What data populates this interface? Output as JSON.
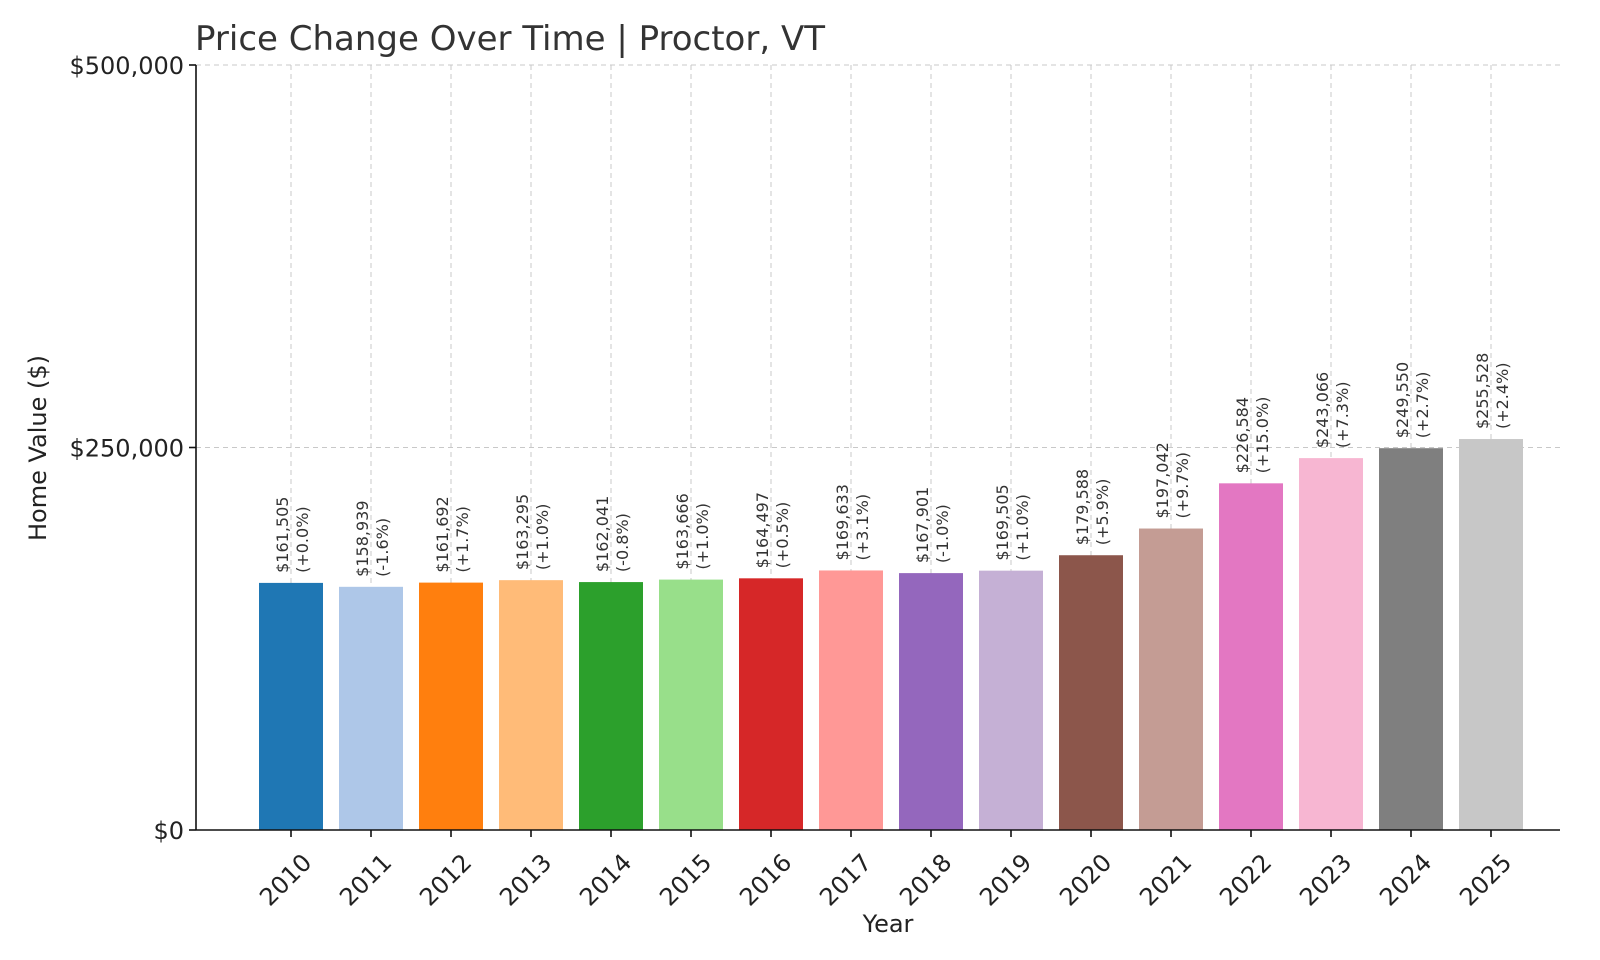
{
  "chart_data": {
    "type": "bar",
    "title": "Price Change Over Time | Proctor, VT",
    "xlabel": "Year",
    "ylabel": "Home Value ($)",
    "ylim": [
      0,
      500000
    ],
    "yticks": [
      0,
      250000,
      500000
    ],
    "ytick_labels": [
      "$0",
      "$250,000",
      "$500,000"
    ],
    "grid": true,
    "categories": [
      "2010",
      "2011",
      "2012",
      "2013",
      "2014",
      "2015",
      "2016",
      "2017",
      "2018",
      "2019",
      "2020",
      "2021",
      "2022",
      "2023",
      "2024",
      "2025"
    ],
    "values": [
      161505,
      158939,
      161692,
      163295,
      162041,
      163666,
      164497,
      169633,
      167901,
      169505,
      179588,
      197042,
      226584,
      243066,
      249550,
      255528
    ],
    "value_labels": [
      "$161,505",
      "$158,939",
      "$161,692",
      "$163,295",
      "$162,041",
      "$163,666",
      "$164,497",
      "$169,633",
      "$167,901",
      "$169,505",
      "$179,588",
      "$197,042",
      "$226,584",
      "$243,066",
      "$249,550",
      "$255,528"
    ],
    "change_labels": [
      "(+0.0%)",
      "(-1.6%)",
      "(+1.7%)",
      "(+1.0%)",
      "(-0.8%)",
      "(+1.0%)",
      "(+0.5%)",
      "(+3.1%)",
      "(-1.0%)",
      "(+1.0%)",
      "(+5.9%)",
      "(+9.7%)",
      "(+15.0%)",
      "(+7.3%)",
      "(+2.7%)",
      "(+2.4%)"
    ],
    "colors": [
      "#1f77b4",
      "#aec7e8",
      "#ff7f0e",
      "#ffbb78",
      "#2ca02c",
      "#98df8a",
      "#d62728",
      "#ff9896",
      "#9467bd",
      "#c5b0d5",
      "#8c564b",
      "#c49c94",
      "#e377c2",
      "#f7b6d2",
      "#7f7f7f",
      "#c7c7c7"
    ]
  }
}
